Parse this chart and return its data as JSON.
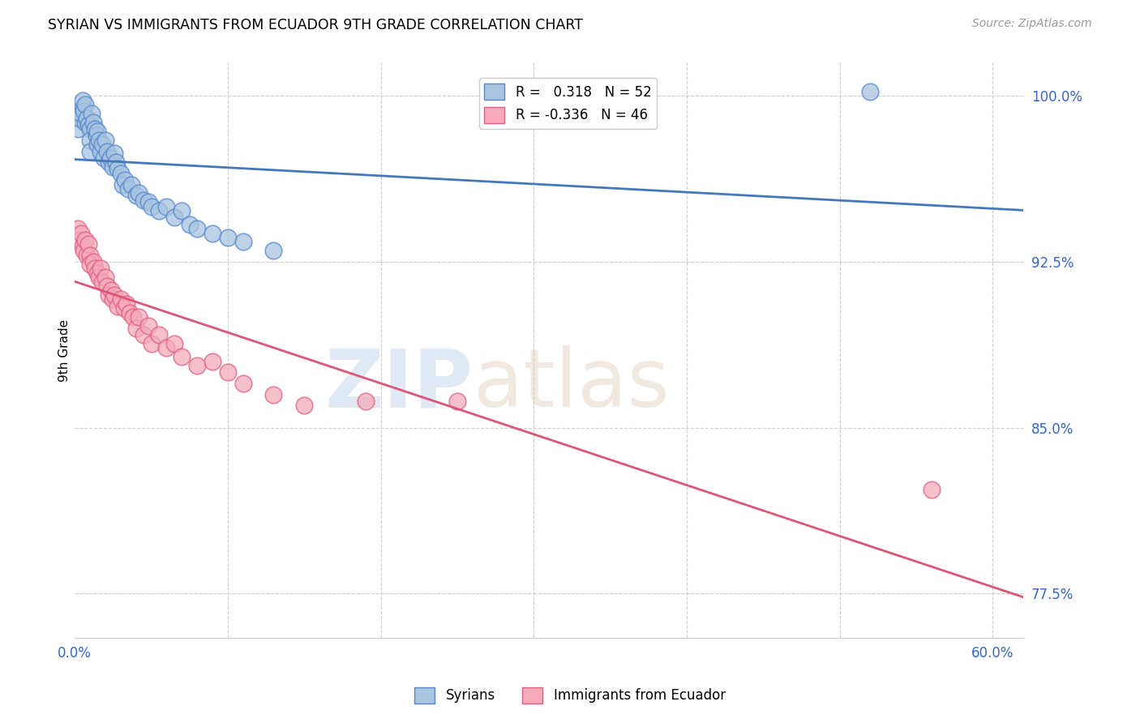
{
  "title": "SYRIAN VS IMMIGRANTS FROM ECUADOR 9TH GRADE CORRELATION CHART",
  "source": "Source: ZipAtlas.com",
  "ylabel": "9th Grade",
  "yticks": [
    77.5,
    85.0,
    92.5,
    100.0
  ],
  "xtick_labels": [
    "0.0%",
    "",
    "",
    "",
    "",
    "",
    "60.0%"
  ],
  "xtick_vals": [
    0.0,
    0.1,
    0.2,
    0.3,
    0.4,
    0.5,
    0.6
  ],
  "xlim": [
    0.0,
    0.62
  ],
  "ylim": [
    0.755,
    1.015
  ],
  "blue_R": 0.318,
  "blue_N": 52,
  "pink_R": -0.336,
  "pink_N": 46,
  "legend_label_blue": "Syrians",
  "legend_label_pink": "Immigrants from Ecuador",
  "blue_color": "#A8C4E0",
  "pink_color": "#F4AABB",
  "blue_edge_color": "#5588CC",
  "pink_edge_color": "#E06080",
  "blue_line_color": "#4477BB",
  "pink_line_color": "#DD5577",
  "watermark_zip": "ZIP",
  "watermark_atlas": "atlas",
  "blue_scatter_x": [
    0.002,
    0.003,
    0.004,
    0.005,
    0.005,
    0.006,
    0.007,
    0.007,
    0.008,
    0.009,
    0.01,
    0.01,
    0.01,
    0.011,
    0.012,
    0.013,
    0.014,
    0.015,
    0.015,
    0.016,
    0.017,
    0.018,
    0.019,
    0.02,
    0.021,
    0.022,
    0.023,
    0.025,
    0.026,
    0.027,
    0.028,
    0.03,
    0.031,
    0.033,
    0.035,
    0.037,
    0.04,
    0.042,
    0.045,
    0.048,
    0.05,
    0.055,
    0.06,
    0.065,
    0.07,
    0.075,
    0.08,
    0.09,
    0.1,
    0.11,
    0.13,
    0.52
  ],
  "blue_scatter_y": [
    0.985,
    0.99,
    0.992,
    0.995,
    0.998,
    0.993,
    0.988,
    0.996,
    0.99,
    0.987,
    0.985,
    0.98,
    0.975,
    0.992,
    0.988,
    0.985,
    0.982,
    0.978,
    0.984,
    0.98,
    0.975,
    0.978,
    0.972,
    0.98,
    0.975,
    0.97,
    0.972,
    0.968,
    0.974,
    0.97,
    0.967,
    0.965,
    0.96,
    0.962,
    0.958,
    0.96,
    0.955,
    0.956,
    0.953,
    0.952,
    0.95,
    0.948,
    0.95,
    0.945,
    0.948,
    0.942,
    0.94,
    0.938,
    0.936,
    0.934,
    0.93,
    1.002
  ],
  "pink_scatter_x": [
    0.002,
    0.003,
    0.004,
    0.005,
    0.006,
    0.007,
    0.008,
    0.009,
    0.01,
    0.01,
    0.012,
    0.013,
    0.015,
    0.016,
    0.017,
    0.018,
    0.02,
    0.021,
    0.022,
    0.024,
    0.025,
    0.026,
    0.028,
    0.03,
    0.032,
    0.034,
    0.036,
    0.038,
    0.04,
    0.042,
    0.045,
    0.048,
    0.05,
    0.055,
    0.06,
    0.065,
    0.07,
    0.08,
    0.09,
    0.1,
    0.11,
    0.13,
    0.15,
    0.19,
    0.25,
    0.56
  ],
  "pink_scatter_y": [
    0.94,
    0.935,
    0.938,
    0.932,
    0.93,
    0.935,
    0.928,
    0.933,
    0.928,
    0.924,
    0.925,
    0.922,
    0.92,
    0.918,
    0.922,
    0.916,
    0.918,
    0.914,
    0.91,
    0.912,
    0.908,
    0.91,
    0.905,
    0.908,
    0.904,
    0.906,
    0.902,
    0.9,
    0.895,
    0.9,
    0.892,
    0.896,
    0.888,
    0.892,
    0.886,
    0.888,
    0.882,
    0.878,
    0.88,
    0.875,
    0.87,
    0.865,
    0.86,
    0.862,
    0.862,
    0.822
  ]
}
